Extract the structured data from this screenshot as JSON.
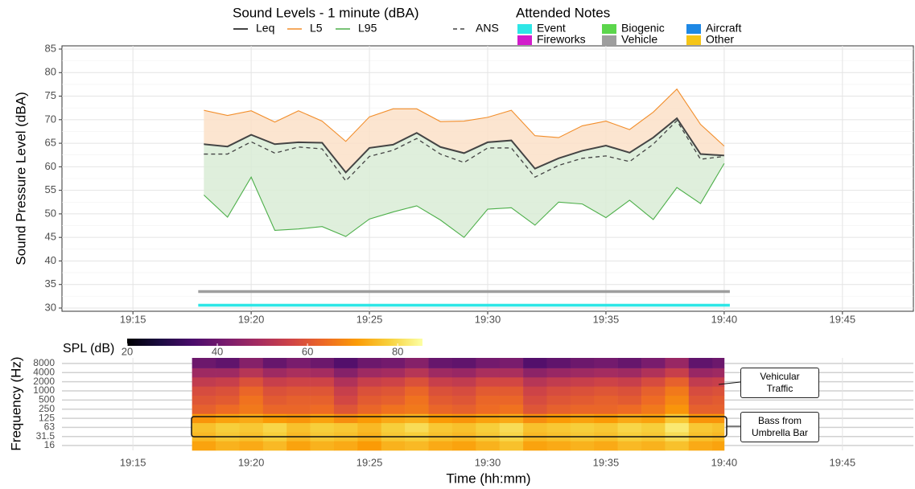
{
  "chart_data": [
    {
      "type": "line",
      "legend_title": "Sound Levels - 1 minute (dBA)",
      "y_label": "Sound Pressure Level (dBA)",
      "x": [
        "19:18",
        "19:19",
        "19:20",
        "19:21",
        "19:22",
        "19:23",
        "19:24",
        "19:25",
        "19:26",
        "19:27",
        "19:28",
        "19:29",
        "19:30",
        "19:31",
        "19:32",
        "19:33",
        "19:34",
        "19:35",
        "19:36",
        "19:37",
        "19:38",
        "19:39",
        "19:40"
      ],
      "xlim": [
        "19:12",
        "19:48"
      ],
      "xticks": [
        "19:15",
        "19:20",
        "19:25",
        "19:30",
        "19:35",
        "19:40",
        "19:45"
      ],
      "ylim": [
        30,
        85
      ],
      "yticks": [
        30,
        35,
        40,
        45,
        50,
        55,
        60,
        65,
        70,
        75,
        80,
        85
      ],
      "grid": true,
      "series": [
        {
          "name": "Leq",
          "color": "#444444",
          "values": [
            64.8,
            64.3,
            66.8,
            64.8,
            65.2,
            65.1,
            58.8,
            64.0,
            64.7,
            67.2,
            64.2,
            62.9,
            65.2,
            65.6,
            59.6,
            61.8,
            63.4,
            64.5,
            63.0,
            66.2,
            70.3,
            62.7,
            62.4
          ]
        },
        {
          "name": "L5",
          "color": "#f28e2b",
          "fill": "#fbe0c8",
          "values": [
            72.0,
            70.9,
            71.9,
            69.5,
            71.9,
            69.7,
            65.4,
            70.6,
            72.3,
            72.3,
            69.6,
            69.7,
            70.5,
            72.0,
            66.6,
            66.2,
            68.7,
            69.7,
            67.9,
            71.6,
            76.5,
            69.0,
            64.4
          ]
        },
        {
          "name": "L95",
          "color": "#4daf4a",
          "fill": "#d9ecd6",
          "values": [
            54.0,
            49.3,
            57.8,
            46.5,
            46.8,
            47.3,
            45.2,
            48.9,
            50.4,
            51.7,
            48.7,
            45.0,
            51.0,
            51.3,
            47.6,
            52.5,
            52.1,
            49.2,
            52.9,
            48.8,
            55.6,
            52.2,
            60.7
          ]
        },
        {
          "name": "ANS",
          "color": "#444444",
          "dash": true,
          "values": [
            62.7,
            62.7,
            65.3,
            62.9,
            64.2,
            63.8,
            57.0,
            62.2,
            63.5,
            66.0,
            62.7,
            60.9,
            64.0,
            64.0,
            57.8,
            60.3,
            61.8,
            62.3,
            61.1,
            64.8,
            69.8,
            61.6,
            62.2
          ]
        }
      ],
      "notes": {
        "title": "Attended Notes",
        "categories": [
          {
            "name": "Event",
            "color": "#2ee6e6"
          },
          {
            "name": "Fireworks",
            "color": "#d21ccb"
          },
          {
            "name": "Biogenic",
            "color": "#5cd64c"
          },
          {
            "name": "Vehicle",
            "color": "#9e9e9e"
          },
          {
            "name": "Aircraft",
            "color": "#1e88e5"
          },
          {
            "name": "Other",
            "color": "#f5c518"
          }
        ],
        "bars": [
          {
            "category": 3,
            "start": "19:18",
            "end": "19:40",
            "level": 33.5
          },
          {
            "category": 0,
            "start": "19:18",
            "end": "19:40",
            "level": 30.6
          }
        ]
      }
    },
    {
      "type": "heatmap",
      "y_label": "Frequency (Hz)",
      "x_label": "Time (hh:mm)",
      "x": [
        "19:18",
        "19:19",
        "19:20",
        "19:21",
        "19:22",
        "19:23",
        "19:24",
        "19:25",
        "19:26",
        "19:27",
        "19:28",
        "19:29",
        "19:30",
        "19:31",
        "19:32",
        "19:33",
        "19:34",
        "19:35",
        "19:36",
        "19:37",
        "19:38",
        "19:39",
        "19:40"
      ],
      "xlim": [
        "19:12",
        "19:48"
      ],
      "xticks": [
        "19:15",
        "19:20",
        "19:25",
        "19:30",
        "19:35",
        "19:40",
        "19:45"
      ],
      "log_y": true,
      "ylim": [
        11,
        12200
      ],
      "yticks": [
        16,
        31.5,
        63,
        125,
        250,
        500,
        1000,
        2000,
        4000,
        8000
      ],
      "bands": [
        16,
        31.5,
        63,
        125,
        250,
        500,
        1000,
        2000,
        4000,
        8000
      ],
      "values": [
        [
          72,
          74,
          73,
          75,
          72,
          74,
          73,
          71,
          74,
          75,
          73,
          72,
          74,
          76,
          72,
          73,
          74,
          73,
          75,
          74,
          76,
          73,
          72
        ],
        [
          75,
          77,
          76,
          78,
          75,
          77,
          76,
          74,
          77,
          78,
          76,
          75,
          77,
          79,
          75,
          76,
          77,
          76,
          78,
          77,
          80,
          76,
          75
        ],
        [
          76,
          78,
          77,
          79,
          76,
          78,
          77,
          75,
          78,
          80,
          77,
          76,
          78,
          80,
          76,
          77,
          78,
          77,
          79,
          78,
          82,
          77,
          76
        ],
        [
          70,
          72,
          73,
          71,
          70,
          72,
          69,
          71,
          73,
          74,
          71,
          70,
          72,
          73,
          69,
          71,
          72,
          71,
          73,
          72,
          77,
          70,
          70
        ],
        [
          62,
          64,
          66,
          63,
          63,
          64,
          60,
          63,
          65,
          66,
          63,
          62,
          64,
          65,
          60,
          62,
          63,
          63,
          64,
          66,
          70,
          62,
          62
        ],
        [
          60,
          61,
          65,
          61,
          62,
          62,
          57,
          61,
          62,
          65,
          61,
          60,
          63,
          63,
          58,
          60,
          61,
          62,
          61,
          64,
          68,
          60,
          61
        ],
        [
          58,
          59,
          63,
          59,
          60,
          60,
          55,
          59,
          60,
          63,
          59,
          58,
          61,
          61,
          56,
          58,
          59,
          60,
          59,
          62,
          66,
          58,
          59
        ],
        [
          54,
          55,
          59,
          55,
          56,
          56,
          51,
          55,
          56,
          59,
          55,
          54,
          57,
          57,
          52,
          54,
          55,
          56,
          55,
          58,
          62,
          54,
          55
        ],
        [
          48,
          48,
          52,
          48,
          50,
          49,
          44,
          48,
          49,
          52,
          48,
          47,
          50,
          50,
          45,
          47,
          48,
          49,
          48,
          51,
          55,
          47,
          48
        ],
        [
          40,
          38,
          44,
          39,
          42,
          40,
          36,
          40,
          41,
          44,
          39,
          38,
          41,
          42,
          36,
          38,
          40,
          41,
          39,
          42,
          47,
          38,
          40
        ]
      ],
      "colorbar": {
        "title": "SPL (dB)",
        "lim": [
          20,
          85.5
        ],
        "ticks": [
          20,
          40,
          60,
          80
        ],
        "colors": [
          "#000004",
          "#1b0c41",
          "#4a0c6b",
          "#781c6d",
          "#a52c60",
          "#cf4446",
          "#ed6925",
          "#fb9b06",
          "#f7d13d",
          "#fcffa4"
        ]
      },
      "annotations": [
        "Vehicular Traffic",
        "Bass from Umbrella Bar"
      ]
    }
  ]
}
